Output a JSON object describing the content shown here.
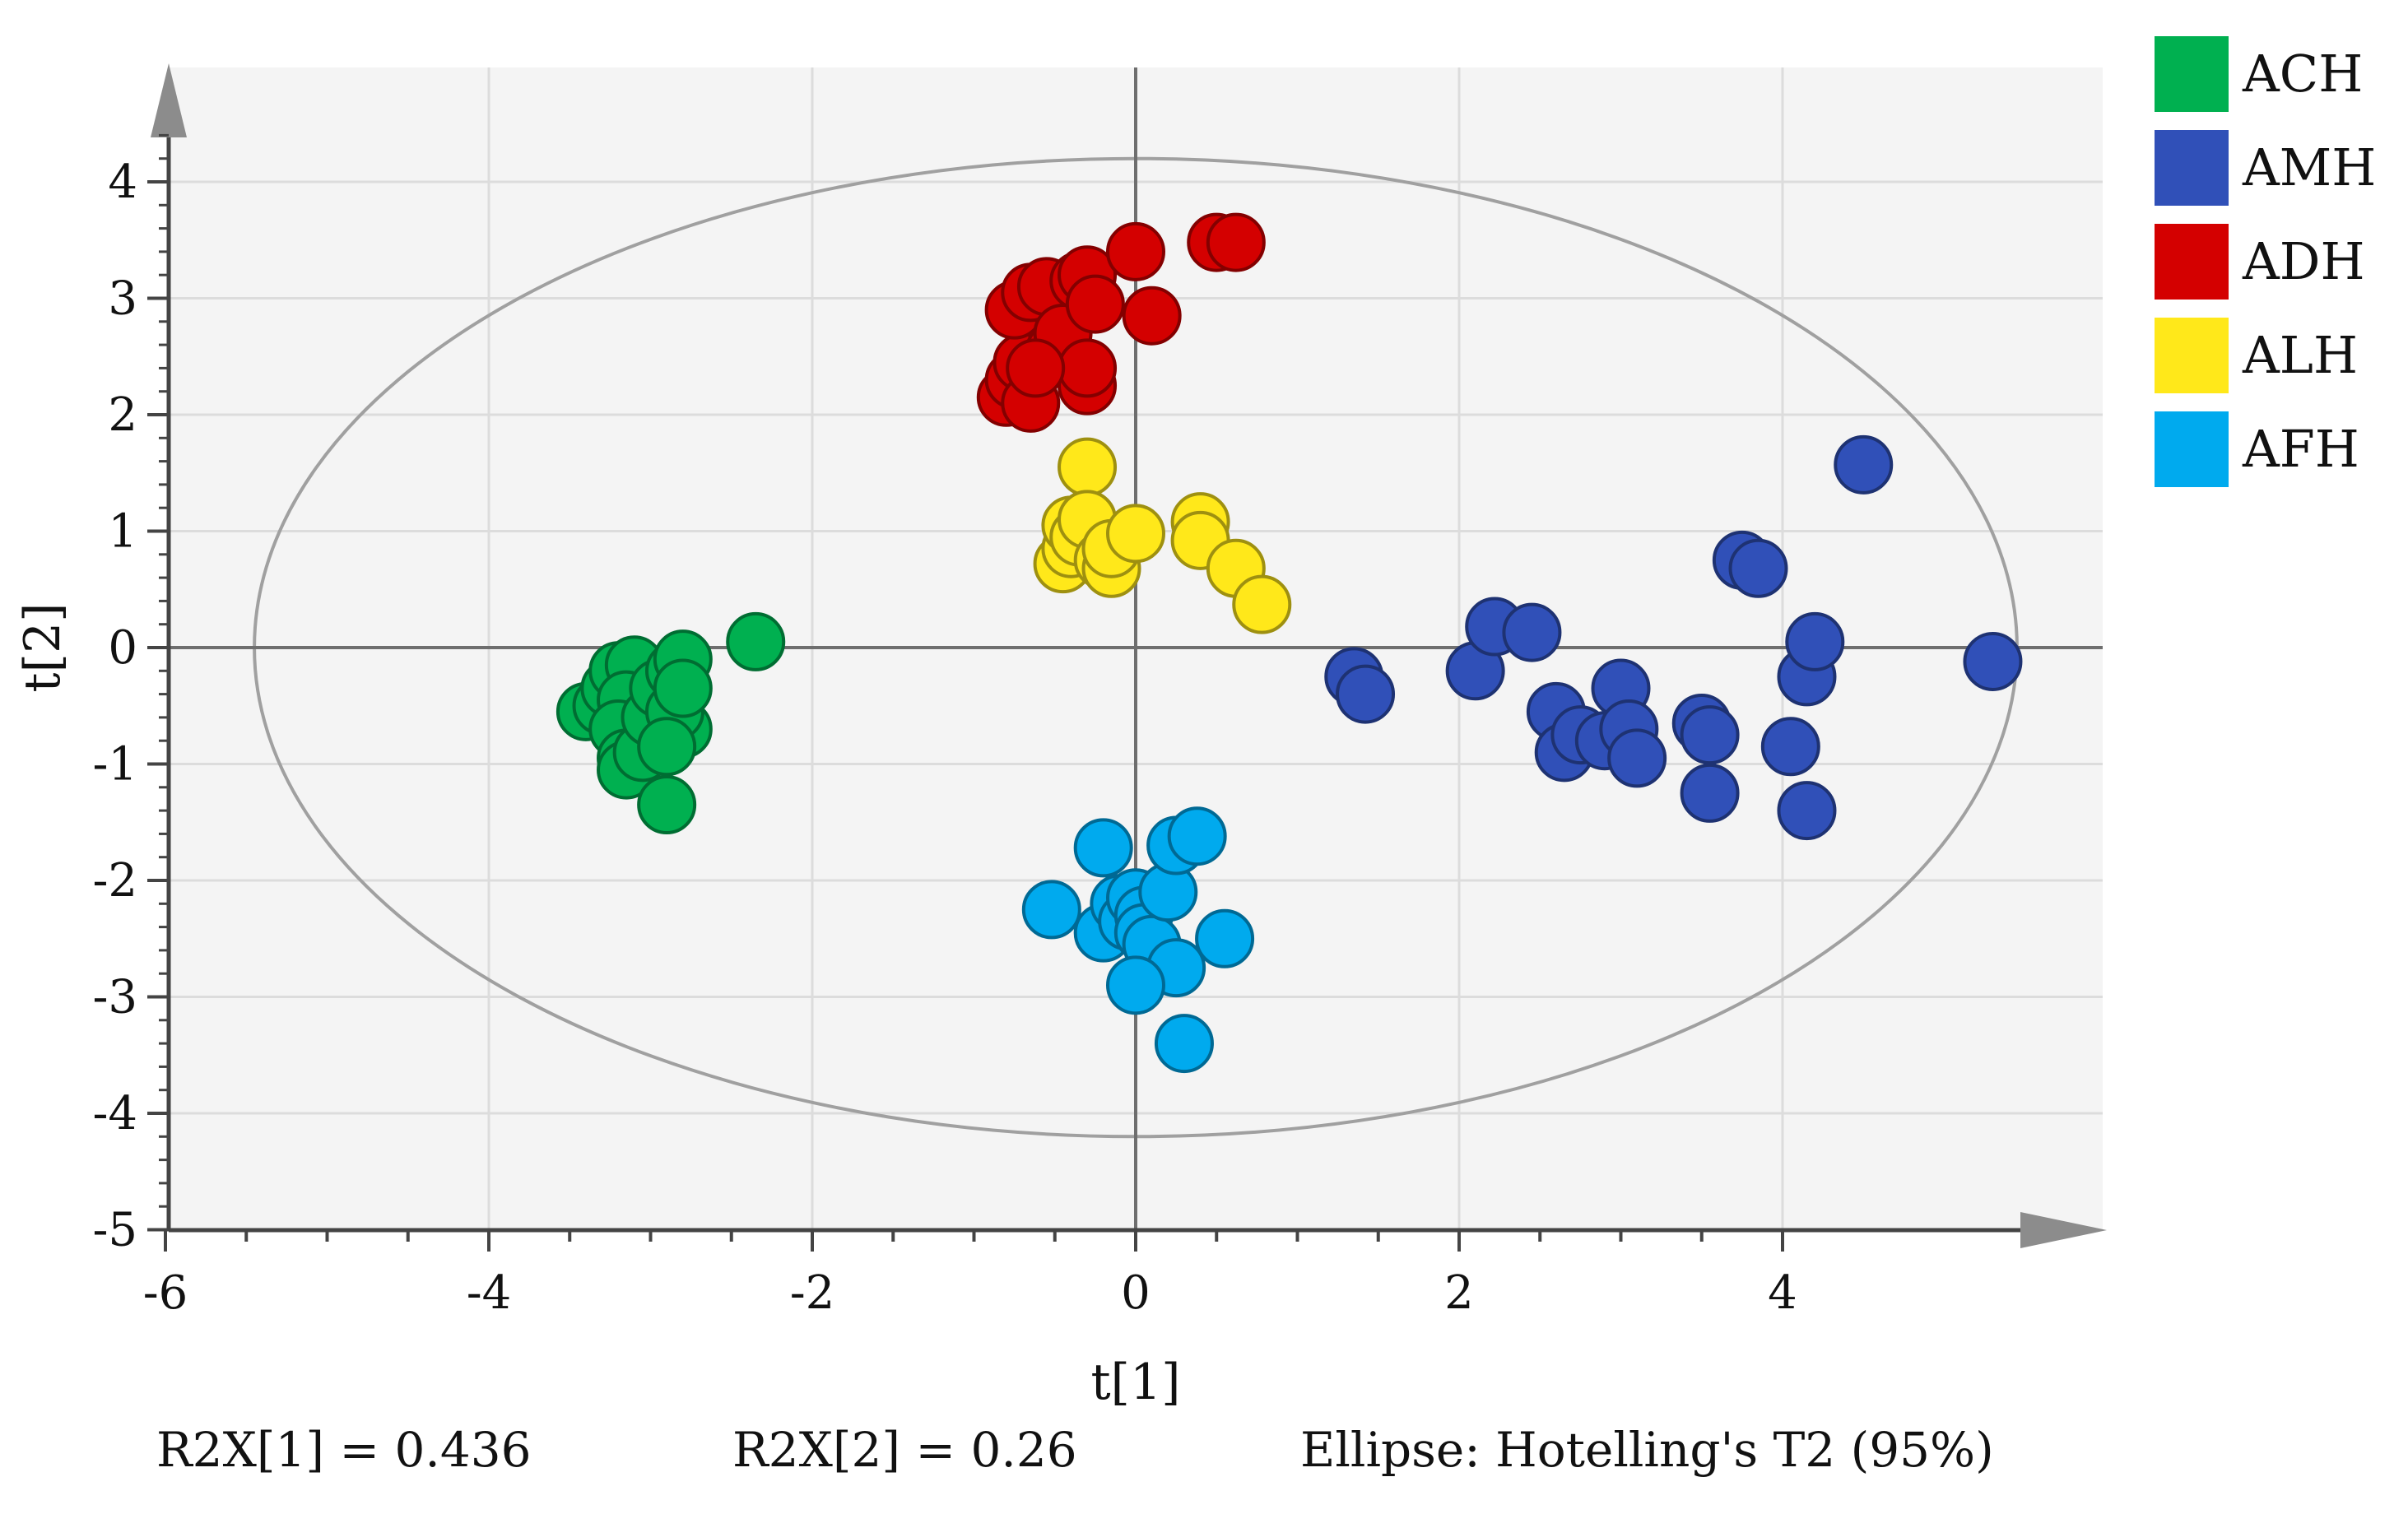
{
  "chart_data": {
    "type": "scatter",
    "xlabel": "t[1]",
    "ylabel": "t[2]",
    "xlim": [
      -6,
      6
    ],
    "ylim": [
      -5,
      5
    ],
    "x_ticks": [
      "-6",
      "-4",
      "-2",
      "0",
      "2",
      "4"
    ],
    "y_ticks": [
      "4",
      "3",
      "2",
      "1",
      "0",
      "-1",
      "-2",
      "-3",
      "-4",
      "-5"
    ],
    "x_tick_values": [
      -6,
      -4,
      -2,
      0,
      2,
      4
    ],
    "y_tick_values": [
      4,
      3,
      2,
      1,
      0,
      -1,
      -2,
      -3,
      -4,
      -5
    ],
    "grid": true,
    "legend_position": "right",
    "ellipse": {
      "label": "Ellipse: Hotelling's T2 (95%)",
      "center": [
        0,
        0
      ],
      "rx": 5.45,
      "ry": 4.2
    },
    "series": [
      {
        "name": "ACH",
        "color": "#00b050",
        "points": [
          [
            -3.4,
            -0.55
          ],
          [
            -3.3,
            -0.5
          ],
          [
            -3.25,
            -0.35
          ],
          [
            -3.2,
            -0.2
          ],
          [
            -3.1,
            -0.15
          ],
          [
            -3.15,
            -0.45
          ],
          [
            -3.2,
            -0.7
          ],
          [
            -3.15,
            -0.95
          ],
          [
            -3.15,
            -1.05
          ],
          [
            -3.05,
            -0.9
          ],
          [
            -3.0,
            -0.6
          ],
          [
            -2.95,
            -0.35
          ],
          [
            -2.85,
            -0.2
          ],
          [
            -2.8,
            -0.1
          ],
          [
            -2.8,
            -0.7
          ],
          [
            -2.85,
            -0.55
          ],
          [
            -2.8,
            -0.35
          ],
          [
            -2.9,
            -0.85
          ],
          [
            -2.9,
            -1.35
          ],
          [
            -2.35,
            0.05
          ]
        ]
      },
      {
        "name": "AMH",
        "color": "#3050b8",
        "points": [
          [
            1.35,
            -0.25
          ],
          [
            1.42,
            -0.4
          ],
          [
            2.1,
            -0.2
          ],
          [
            2.22,
            0.18
          ],
          [
            2.45,
            0.13
          ],
          [
            2.6,
            -0.55
          ],
          [
            2.65,
            -0.9
          ],
          [
            2.75,
            -0.75
          ],
          [
            2.9,
            -0.8
          ],
          [
            3.0,
            -0.35
          ],
          [
            3.05,
            -0.7
          ],
          [
            3.1,
            -0.95
          ],
          [
            3.5,
            -0.65
          ],
          [
            3.55,
            -0.75
          ],
          [
            3.55,
            -1.25
          ],
          [
            3.75,
            0.75
          ],
          [
            3.85,
            0.68
          ],
          [
            4.05,
            -0.85
          ],
          [
            4.15,
            -0.25
          ],
          [
            4.2,
            0.05
          ],
          [
            4.15,
            -1.4
          ],
          [
            4.5,
            1.57
          ],
          [
            5.3,
            -0.12
          ]
        ]
      },
      {
        "name": "ADH",
        "color": "#d40000",
        "points": [
          [
            -0.8,
            2.15
          ],
          [
            -0.75,
            2.3
          ],
          [
            -0.7,
            2.45
          ],
          [
            -0.65,
            2.1
          ],
          [
            -0.75,
            2.9
          ],
          [
            -0.65,
            3.05
          ],
          [
            -0.55,
            3.1
          ],
          [
            -0.5,
            2.55
          ],
          [
            -0.45,
            2.7
          ],
          [
            -0.35,
            3.15
          ],
          [
            -0.3,
            3.2
          ],
          [
            -0.3,
            2.25
          ],
          [
            -0.3,
            2.4
          ],
          [
            -0.25,
            2.95
          ],
          [
            0.0,
            3.4
          ],
          [
            0.1,
            2.85
          ],
          [
            0.5,
            3.48
          ],
          [
            0.62,
            3.48
          ],
          [
            -0.62,
            2.4
          ]
        ]
      },
      {
        "name": "ALH",
        "color": "#ffe81a",
        "points": [
          [
            -0.45,
            0.72
          ],
          [
            -0.4,
            0.85
          ],
          [
            -0.4,
            1.05
          ],
          [
            -0.35,
            0.95
          ],
          [
            -0.3,
            1.55
          ],
          [
            -0.3,
            1.1
          ],
          [
            -0.2,
            0.75
          ],
          [
            -0.15,
            0.68
          ],
          [
            -0.15,
            0.85
          ],
          [
            0.0,
            0.98
          ],
          [
            0.4,
            1.08
          ],
          [
            0.4,
            0.92
          ],
          [
            0.62,
            0.68
          ],
          [
            0.78,
            0.37
          ]
        ]
      },
      {
        "name": "AFH",
        "color": "#00aaee",
        "points": [
          [
            -0.52,
            -2.25
          ],
          [
            -0.2,
            -1.72
          ],
          [
            -0.2,
            -2.45
          ],
          [
            -0.1,
            -2.2
          ],
          [
            -0.05,
            -2.35
          ],
          [
            0.0,
            -2.15
          ],
          [
            0.05,
            -2.3
          ],
          [
            0.05,
            -2.45
          ],
          [
            0.1,
            -2.55
          ],
          [
            0.2,
            -2.1
          ],
          [
            0.25,
            -1.7
          ],
          [
            0.25,
            -2.75
          ],
          [
            0.38,
            -1.62
          ],
          [
            0.55,
            -2.5
          ],
          [
            0.0,
            -2.9
          ],
          [
            0.3,
            -3.4
          ]
        ]
      }
    ]
  },
  "footer": {
    "r2x1": "R2X[1] = 0.436",
    "r2x2": "R2X[2] = 0.26",
    "ellipse_label": "Ellipse: Hotelling's T2 (95%)"
  }
}
